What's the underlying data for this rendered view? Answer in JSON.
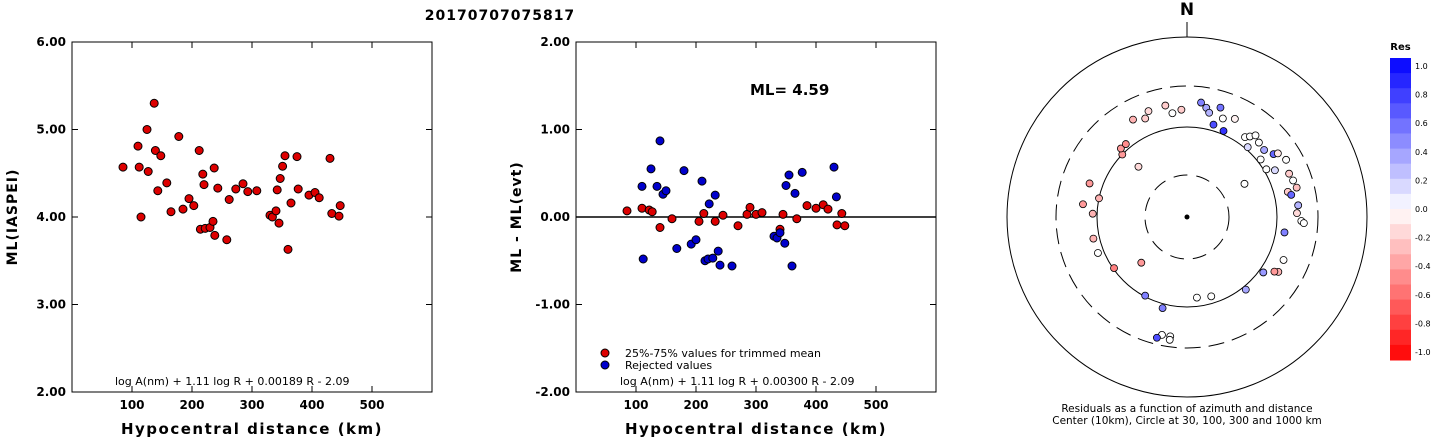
{
  "event_id": "20170707075817",
  "chart_data": [
    {
      "type": "scatter",
      "ylabel": "ML(IASPEI)",
      "xlabel": "Hypocentral distance (km)",
      "xlim": [
        0,
        600
      ],
      "ylim": [
        2.0,
        6.0
      ],
      "x_ticks": [
        "100",
        "200",
        "300",
        "400",
        "500"
      ],
      "y_ticks": [
        "2.00",
        "3.00",
        "4.00",
        "5.00",
        "6.00"
      ],
      "formula": "log A(nm) + 1.11 log R + 0.00189 R - 2.09",
      "point_color": "#dd0000",
      "points": [
        [
          85,
          4.57
        ],
        [
          110,
          4.81
        ],
        [
          112,
          4.57
        ],
        [
          115,
          4.0
        ],
        [
          125,
          5.0
        ],
        [
          127,
          4.52
        ],
        [
          137,
          5.3
        ],
        [
          139,
          4.76
        ],
        [
          143,
          4.3
        ],
        [
          148,
          4.7
        ],
        [
          158,
          4.39
        ],
        [
          165,
          4.06
        ],
        [
          178,
          4.92
        ],
        [
          185,
          4.09
        ],
        [
          195,
          4.21
        ],
        [
          203,
          4.13
        ],
        [
          212,
          4.76
        ],
        [
          214,
          3.86
        ],
        [
          218,
          4.49
        ],
        [
          220,
          4.37
        ],
        [
          222,
          3.87
        ],
        [
          230,
          3.88
        ],
        [
          235,
          3.95
        ],
        [
          237,
          4.56
        ],
        [
          238,
          3.79
        ],
        [
          243,
          4.33
        ],
        [
          258,
          3.74
        ],
        [
          262,
          4.2
        ],
        [
          273,
          4.32
        ],
        [
          285,
          4.38
        ],
        [
          293,
          4.29
        ],
        [
          308,
          4.3
        ],
        [
          330,
          4.02
        ],
        [
          334,
          4.0
        ],
        [
          340,
          4.07
        ],
        [
          342,
          4.31
        ],
        [
          345,
          3.93
        ],
        [
          347,
          4.44
        ],
        [
          351,
          4.58
        ],
        [
          355,
          4.7
        ],
        [
          360,
          3.63
        ],
        [
          365,
          4.16
        ],
        [
          375,
          4.69
        ],
        [
          377,
          4.32
        ],
        [
          395,
          4.25
        ],
        [
          405,
          4.28
        ],
        [
          412,
          4.22
        ],
        [
          430,
          4.67
        ],
        [
          433,
          4.04
        ],
        [
          445,
          4.01
        ],
        [
          447,
          4.13
        ]
      ]
    },
    {
      "type": "scatter",
      "ylabel": "ML - ML(evt)",
      "xlabel": "Hypocentral distance (km)",
      "xlim": [
        0,
        600
      ],
      "ylim": [
        -2.0,
        2.0
      ],
      "x_ticks": [
        "100",
        "200",
        "300",
        "400",
        "500"
      ],
      "y_ticks": [
        "-2.00",
        "-1.00",
        "0.00",
        "1.00",
        "2.00"
      ],
      "annotation": "ML=  4.59",
      "formula": "log A(nm) + 1.11 log R + 0.00300 R - 2.09",
      "legend": [
        {
          "label": "25%-75% values for trimmed mean",
          "color": "#dd0000"
        },
        {
          "label": "Rejected values",
          "color": "#0000cc"
        }
      ],
      "series": [
        {
          "name": "25%-75% values for trimmed mean",
          "color": "#dd0000",
          "points": [
            [
              85,
              0.07
            ],
            [
              110,
              0.1
            ],
            [
              122,
              0.08
            ],
            [
              127,
              0.06
            ],
            [
              140,
              -0.12
            ],
            [
              160,
              -0.02
            ],
            [
              205,
              -0.05
            ],
            [
              213,
              0.04
            ],
            [
              232,
              -0.05
            ],
            [
              245,
              0.02
            ],
            [
              270,
              -0.1
            ],
            [
              285,
              0.03
            ],
            [
              290,
              0.11
            ],
            [
              300,
              0.03
            ],
            [
              310,
              0.05
            ],
            [
              340,
              -0.14
            ],
            [
              345,
              0.03
            ],
            [
              368,
              -0.02
            ],
            [
              385,
              0.13
            ],
            [
              400,
              0.1
            ],
            [
              412,
              0.14
            ],
            [
              420,
              0.09
            ],
            [
              435,
              -0.09
            ],
            [
              443,
              0.04
            ],
            [
              448,
              -0.1
            ]
          ]
        },
        {
          "name": "Rejected values",
          "color": "#0000cc",
          "points": [
            [
              110,
              0.35
            ],
            [
              112,
              -0.48
            ],
            [
              125,
              0.55
            ],
            [
              135,
              0.35
            ],
            [
              140,
              0.87
            ],
            [
              145,
              0.26
            ],
            [
              150,
              0.3
            ],
            [
              168,
              -0.36
            ],
            [
              180,
              0.53
            ],
            [
              192,
              -0.31
            ],
            [
              200,
              -0.26
            ],
            [
              210,
              0.41
            ],
            [
              215,
              -0.5
            ],
            [
              220,
              -0.48
            ],
            [
              222,
              0.15
            ],
            [
              228,
              -0.47
            ],
            [
              232,
              0.25
            ],
            [
              237,
              -0.39
            ],
            [
              240,
              -0.55
            ],
            [
              260,
              -0.56
            ],
            [
              330,
              -0.22
            ],
            [
              335,
              -0.24
            ],
            [
              340,
              -0.18
            ],
            [
              348,
              -0.3
            ],
            [
              350,
              0.36
            ],
            [
              355,
              0.48
            ],
            [
              360,
              -0.56
            ],
            [
              365,
              0.27
            ],
            [
              377,
              0.51
            ],
            [
              430,
              0.57
            ],
            [
              434,
              0.23
            ]
          ]
        }
      ]
    },
    {
      "type": "scatter",
      "subtype": "polar",
      "north_label": "N",
      "caption_line1": "Residuals as a function of azimuth and distance",
      "caption_line2": "Center (10km), Circle at 30, 100, 300 and 1000 km",
      "colorbar": {
        "title": "Res",
        "min": -1.0,
        "max": 1.0,
        "tick_labels": [
          "1.0",
          "0.8",
          "0.6",
          "0.4",
          "0.2",
          "0.0",
          "-0.2",
          "-0.4",
          "-0.6",
          "-0.8",
          "-1.0"
        ]
      },
      "points": [
        {
          "az": -29,
          "dist": 255,
          "res": -0.3
        },
        {
          "az": -23,
          "dist": 245,
          "res": -0.2
        },
        {
          "az": -20,
          "dist": 258,
          "res": -0.15
        },
        {
          "az": -11,
          "dist": 260,
          "res": -0.2
        },
        {
          "az": -8,
          "dist": 240,
          "res": 0.0
        },
        {
          "az": -3,
          "dist": 246,
          "res": -0.2
        },
        {
          "az": 7,
          "dist": 264,
          "res": 0.5
        },
        {
          "az": 10,
          "dist": 254,
          "res": 0.35
        },
        {
          "az": 12,
          "dist": 244,
          "res": 0.3
        },
        {
          "az": 17,
          "dist": 262,
          "res": 0.55
        },
        {
          "az": 20,
          "dist": 240,
          "res": 0.0
        },
        {
          "az": 26,
          "dist": 250,
          "res": -0.05
        },
        {
          "az": 16,
          "dist": 220,
          "res": 0.7
        },
        {
          "az": 23,
          "dist": 214,
          "res": 0.8
        },
        {
          "az": 36,
          "dist": 226,
          "res": 0.0
        },
        {
          "az": 38,
          "dist": 234,
          "res": 0.0
        },
        {
          "az": 40,
          "dist": 244,
          "res": 0.0
        },
        {
          "az": 44,
          "dist": 237,
          "res": 0.0
        },
        {
          "az": 41,
          "dist": 212,
          "res": 0.15
        },
        {
          "az": 49,
          "dist": 234,
          "res": 0.35
        },
        {
          "az": 52,
          "dist": 214,
          "res": 0.0
        },
        {
          "az": 59,
          "dist": 212,
          "res": 0.0
        },
        {
          "az": 62,
          "dist": 228,
          "res": 0.15
        },
        {
          "az": 54,
          "dist": 245,
          "res": 0.6
        },
        {
          "az": 55,
          "dist": 254,
          "res": -0.1
        },
        {
          "az": 60,
          "dist": 262,
          "res": 0.0
        },
        {
          "az": 67,
          "dist": 254,
          "res": -0.2
        },
        {
          "az": 71,
          "dist": 257,
          "res": 0.0
        },
        {
          "az": 60,
          "dist": 152,
          "res": 0.0
        },
        {
          "az": 76,
          "dist": 238,
          "res": -0.2
        },
        {
          "az": 78,
          "dist": 244,
          "res": 0.6
        },
        {
          "az": 75,
          "dist": 260,
          "res": -0.25
        },
        {
          "az": 84,
          "dist": 256,
          "res": 0.3
        },
        {
          "az": 88,
          "dist": 252,
          "res": -0.15
        },
        {
          "az": 92,
          "dist": 262,
          "res": 0.0
        },
        {
          "az": 93,
          "dist": 268,
          "res": 0.0
        },
        {
          "az": 99,
          "dist": 226,
          "res": 0.5
        },
        {
          "az": 114,
          "dist": 242,
          "res": 0.0
        },
        {
          "az": 121,
          "dist": 244,
          "res": -0.3
        },
        {
          "az": 122,
          "dist": 236,
          "res": -0.4
        },
        {
          "az": 126,
          "dist": 216,
          "res": 0.4
        },
        {
          "az": 141,
          "dist": 214,
          "res": 0.35
        },
        {
          "az": 163,
          "dist": 190,
          "res": 0.0
        },
        {
          "az": 173,
          "dist": 186,
          "res": 0.0
        },
        {
          "az": 195,
          "dist": 216,
          "res": 0.5
        },
        {
          "az": 188,
          "dist": 276,
          "res": 0.0
        },
        {
          "az": 188,
          "dist": 284,
          "res": 0.0
        },
        {
          "az": 192,
          "dist": 276,
          "res": 0.0
        },
        {
          "az": 194,
          "dist": 285,
          "res": 0.7
        },
        {
          "az": 208,
          "dist": 204,
          "res": 0.5
        },
        {
          "az": 225,
          "dist": 148,
          "res": -0.4
        },
        {
          "az": 235,
          "dist": 204,
          "res": -0.5
        },
        {
          "az": 248,
          "dist": 220,
          "res": 0.0
        },
        {
          "az": 257,
          "dist": 220,
          "res": -0.3
        },
        {
          "az": 272,
          "dist": 216,
          "res": -0.3
        },
        {
          "az": 277,
          "dist": 240,
          "res": -0.4
        },
        {
          "az": 282,
          "dist": 206,
          "res": -0.3
        },
        {
          "az": 289,
          "dist": 236,
          "res": -0.4
        },
        {
          "az": 314,
          "dist": 206,
          "res": -0.4
        },
        {
          "az": 316,
          "dist": 218,
          "res": -0.4
        },
        {
          "az": 320,
          "dist": 218,
          "res": -0.45
        },
        {
          "az": 316,
          "dist": 160,
          "res": -0.15
        }
      ]
    }
  ]
}
